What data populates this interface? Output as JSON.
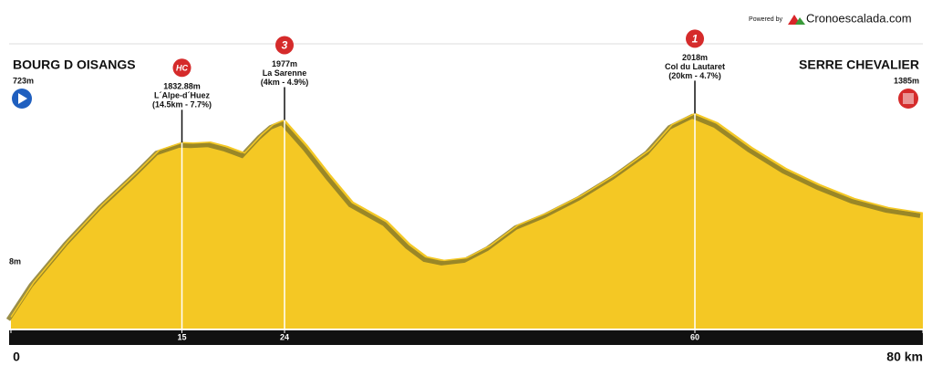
{
  "chart_data": {
    "type": "area",
    "powered_by": "Powered by",
    "brand": "Cronoescalada.com",
    "start": {
      "name": "BOURG D OISANGS",
      "elevation_label": "723m"
    },
    "finish": {
      "name": "SERRE CHEVALIER",
      "elevation_label": "1385m"
    },
    "annotation": "8m",
    "x": [
      0,
      2,
      5,
      8,
      11,
      13,
      15,
      16,
      17.5,
      19,
      20.5,
      22,
      23,
      24,
      26,
      28,
      30,
      33,
      35,
      36.5,
      38,
      40,
      42,
      44.5,
      47,
      50,
      53,
      56,
      58,
      60,
      62,
      65,
      68,
      71,
      74,
      77,
      80
    ],
    "values": [
      723,
      943,
      1204,
      1436,
      1640,
      1784,
      1833,
      1830,
      1836,
      1808,
      1767,
      1883,
      1947,
      1977,
      1813,
      1628,
      1454,
      1332,
      1187,
      1106,
      1083,
      1100,
      1175,
      1309,
      1384,
      1494,
      1628,
      1784,
      1947,
      2018,
      1958,
      1802,
      1668,
      1564,
      1477,
      1419,
      1385
    ],
    "color": "#f4c824",
    "edge_color": "#8a7b28",
    "xlim": [
      0,
      80
    ],
    "ylim": [
      650,
      2450
    ],
    "xticks": [
      0,
      15,
      24,
      60,
      {
        "value": 80,
        "label": "80 km"
      }
    ],
    "climbs": [
      {
        "km": 15,
        "elevation": 1832.88,
        "elevation_label": "1832.88m",
        "name": "L´Alpe-d´Huez",
        "detail": "(14.5km - 7.7%)",
        "category": "HC"
      },
      {
        "km": 24,
        "elevation": 1977,
        "elevation_label": "1977m",
        "name": "La Sarenne",
        "detail": "(4km - 4.9%)",
        "category": "3"
      },
      {
        "km": 60,
        "elevation": 2018,
        "elevation_label": "2018m",
        "name": "Col du Lautaret",
        "detail": "(20km - 4.7%)",
        "category": "1"
      }
    ]
  }
}
